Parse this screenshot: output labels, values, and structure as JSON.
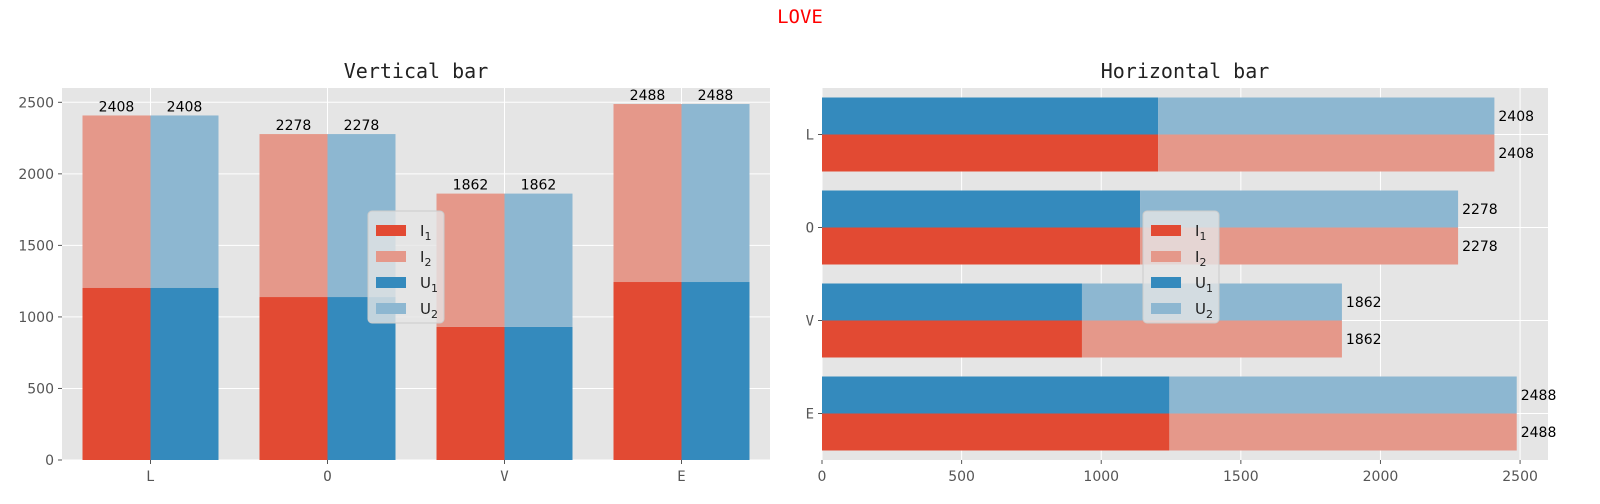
{
  "suptitle": "LOVE",
  "colors": {
    "background": "#e5e5e5",
    "grid": "#ffffff",
    "I1": "#e24a33",
    "I2": "#e5988a",
    "U1": "#348abd",
    "U2": "#8db7d1"
  },
  "chart_data": [
    {
      "type": "bar",
      "orientation": "vertical",
      "title": "Vertical bar",
      "categories": [
        "L",
        "O",
        "V",
        "E"
      ],
      "series": [
        {
          "name": "I",
          "sub": "1",
          "values": [
            1204,
            1139,
            931,
            1244
          ]
        },
        {
          "name": "I",
          "sub": "2",
          "values": [
            1204,
            1139,
            931,
            1244
          ]
        },
        {
          "name": "U",
          "sub": "1",
          "values": [
            1204,
            1139,
            931,
            1244
          ]
        },
        {
          "name": "U",
          "sub": "2",
          "values": [
            1204,
            1139,
            931,
            1244
          ]
        }
      ],
      "totals": [
        2408,
        2278,
        1862,
        2488
      ],
      "ylim": [
        0,
        2600
      ],
      "yticks": [
        0,
        500,
        1000,
        1500,
        2000,
        2500
      ],
      "grid": true,
      "legend": "center"
    },
    {
      "type": "bar",
      "orientation": "horizontal",
      "title": "Horizontal bar",
      "categories": [
        "L",
        "O",
        "V",
        "E"
      ],
      "series": [
        {
          "name": "I",
          "sub": "1",
          "values": [
            1204,
            1139,
            931,
            1244
          ]
        },
        {
          "name": "I",
          "sub": "2",
          "values": [
            1204,
            1139,
            931,
            1244
          ]
        },
        {
          "name": "U",
          "sub": "1",
          "values": [
            1204,
            1139,
            931,
            1244
          ]
        },
        {
          "name": "U",
          "sub": "2",
          "values": [
            1204,
            1139,
            931,
            1244
          ]
        }
      ],
      "totals": [
        2408,
        2278,
        1862,
        2488
      ],
      "xlim": [
        0,
        2600
      ],
      "xticks": [
        0,
        500,
        1000,
        1500,
        2000,
        2500
      ],
      "grid": true,
      "legend": "center"
    }
  ]
}
